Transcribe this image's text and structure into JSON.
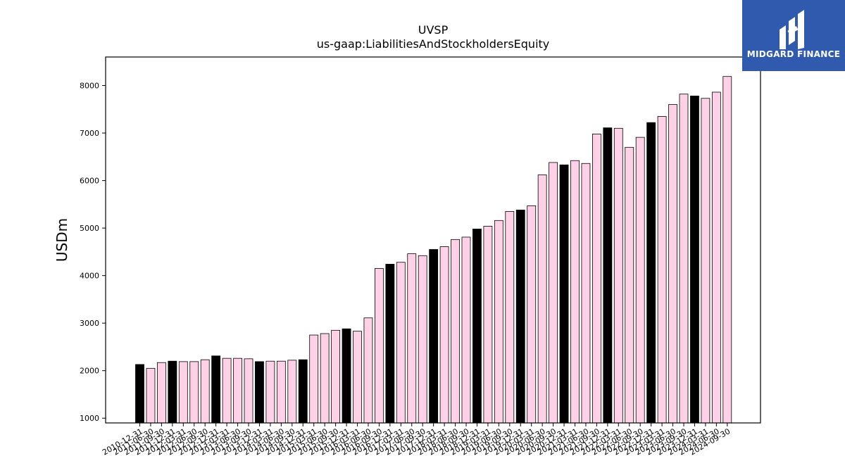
{
  "chart_data": {
    "type": "bar",
    "title": "UVSP",
    "subtitle": "us-gaap:LiabilitiesAndStockholdersEquity",
    "ylabel": "USDm",
    "xlabel": "",
    "ylim": [
      900,
      8600
    ],
    "yticks": [
      1000,
      2000,
      3000,
      4000,
      5000,
      6000,
      7000,
      8000
    ],
    "grid": false,
    "colors": {
      "highlight": "#000000",
      "normal": "#ffd1e6",
      "edge": "#000000"
    },
    "categories": [
      "2010-12-31",
      "2011-06-30",
      "2011-09-30",
      "2011-12-31",
      "2012-03-31",
      "2012-06-30",
      "2012-09-30",
      "2012-12-31",
      "2013-03-31",
      "2013-06-30",
      "2013-09-30",
      "2013-12-31",
      "2014-03-31",
      "2014-06-30",
      "2014-09-30",
      "2014-12-31",
      "2015-03-31",
      "2015-06-30",
      "2015-09-30",
      "2015-12-31",
      "2016-03-31",
      "2016-06-30",
      "2016-09-30",
      "2016-12-31",
      "2017-03-31",
      "2017-06-30",
      "2017-09-30",
      "2017-12-31",
      "2018-03-31",
      "2018-06-30",
      "2018-09-30",
      "2018-12-31",
      "2019-03-31",
      "2019-06-30",
      "2019-09-30",
      "2019-12-31",
      "2020-03-31",
      "2020-06-30",
      "2020-09-30",
      "2020-12-31",
      "2021-03-31",
      "2021-06-30",
      "2021-09-30",
      "2021-12-31",
      "2022-03-31",
      "2022-06-30",
      "2022-09-30",
      "2022-12-31",
      "2023-03-31",
      "2023-06-30",
      "2023-09-30",
      "2023-12-31",
      "2024-03-31",
      "2024-06-30",
      "2024-09-30"
    ],
    "values": [
      2130,
      2050,
      2170,
      2200,
      2190,
      2190,
      2230,
      2310,
      2260,
      2260,
      2250,
      2190,
      2200,
      2200,
      2220,
      2230,
      2750,
      2780,
      2850,
      2880,
      2830,
      3110,
      4150,
      4240,
      4280,
      4460,
      4420,
      4550,
      4610,
      4760,
      4810,
      4980,
      5040,
      5160,
      5350,
      5380,
      5470,
      6120,
      6380,
      6330,
      6420,
      6360,
      6980,
      7110,
      7100,
      6700,
      6910,
      7220,
      7350,
      7600,
      7820,
      7780,
      7730,
      7860,
      8190
    ],
    "highlight": [
      true,
      false,
      false,
      true,
      false,
      false,
      false,
      true,
      false,
      false,
      false,
      true,
      false,
      false,
      false,
      true,
      false,
      false,
      false,
      true,
      false,
      false,
      false,
      true,
      false,
      false,
      false,
      true,
      false,
      false,
      false,
      true,
      false,
      false,
      false,
      true,
      false,
      false,
      false,
      true,
      false,
      false,
      false,
      true,
      false,
      false,
      false,
      true,
      false,
      false,
      false,
      true,
      false,
      false,
      false
    ]
  },
  "logo": {
    "text": "MIDGARD FINANCE",
    "bg": "#2f5aad"
  }
}
